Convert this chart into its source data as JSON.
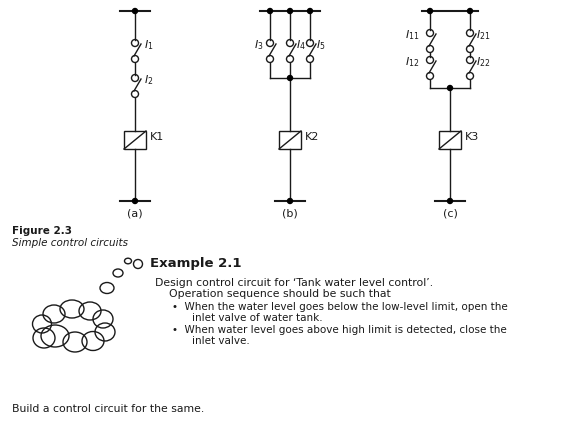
{
  "bg_color": "#ffffff",
  "line_color": "#1a1a1a",
  "fig_label": "Figure 2.3",
  "fig_caption": "Simple control circuits",
  "example_title": "Example 2.1",
  "example_text1": "Design control circuit for ‘Tank water level control’.",
  "example_text2": "  Operation sequence should be such that",
  "bullet1a": "•  When the water level goes below the low-level limit, open the",
  "bullet1b": "    inlet valve of water tank.",
  "bullet2a": "•  When water level goes above high limit is detected, close the",
  "bullet2b": "    inlet valve.",
  "build_text": "Build a control circuit for the same.",
  "sub_a": "(a)",
  "sub_b": "(b)",
  "sub_c": "(c)",
  "K1": "K1",
  "K2": "K2",
  "K3": "K3"
}
